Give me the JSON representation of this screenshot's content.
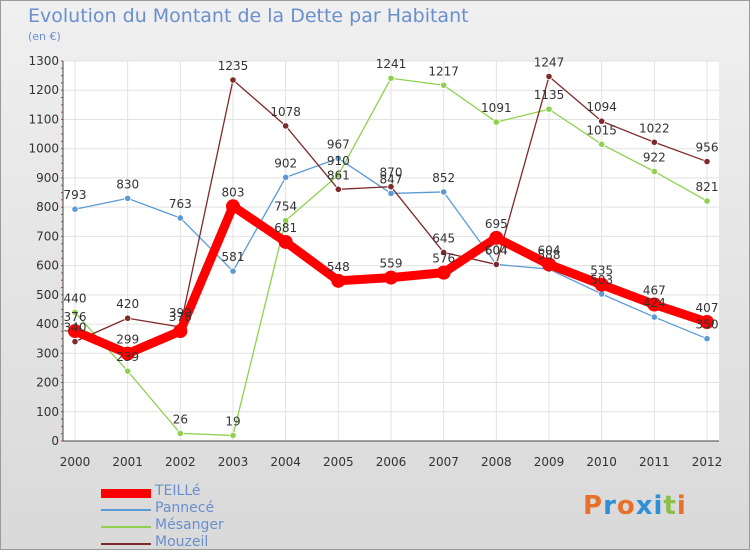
{
  "title": "Evolution du Montant de la Dette par Habitant",
  "unit": "(en €)",
  "logo": {
    "text": "Proxiti",
    "letter_colors": [
      "#e8702a",
      "#2f8fd6",
      "#e8702a",
      "#2f8fd6",
      "#2f8fd6",
      "#8ac04a",
      "#e8702a"
    ]
  },
  "chart_data": {
    "type": "line",
    "title": "Evolution du Montant de la Dette par Habitant",
    "subtitle": "(en €)",
    "x": [
      2000,
      2001,
      2002,
      2003,
      2004,
      2005,
      2006,
      2007,
      2008,
      2009,
      2010,
      2011,
      2012
    ],
    "ylim": [
      0,
      1300
    ],
    "yticks": [
      0,
      100,
      200,
      300,
      400,
      500,
      600,
      700,
      800,
      900,
      1000,
      1100,
      1200,
      1300
    ],
    "grid": true,
    "legend_position": "bottom-left",
    "series": [
      {
        "name": "TEILLé",
        "color": "#ff0000",
        "values": [
          376,
          299,
          376,
          803,
          681,
          548,
          559,
          576,
          695,
          604,
          535,
          467,
          407
        ]
      },
      {
        "name": "Pannecé",
        "color": "#5b9bd5",
        "values": [
          793,
          830,
          763,
          581,
          902,
          967,
          847,
          852,
          604,
          588,
          503,
          424,
          350
        ]
      },
      {
        "name": "Mésanger",
        "color": "#8fd14f",
        "values": [
          440,
          239,
          26,
          19,
          754,
          910,
          1241,
          1217,
          1091,
          1135,
          1015,
          922,
          821
        ]
      },
      {
        "name": "Mouzeil",
        "color": "#7f2a2a",
        "values": [
          340,
          420,
          390,
          1235,
          1078,
          861,
          870,
          645,
          604,
          1247,
          1094,
          1022,
          956
        ]
      }
    ]
  }
}
